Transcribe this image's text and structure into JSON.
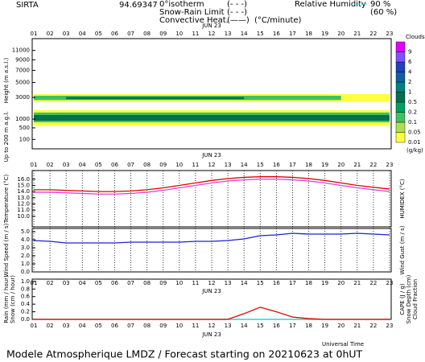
{
  "header": {
    "site": "SIRTA",
    "coords": "94.69347",
    "legend": [
      {
        "name": "0°isotherm",
        "symbol": "(- - -)",
        "color": "#e040e0"
      },
      {
        "name": "Snow-Rain Limit",
        "symbol": "(- - -)",
        "color": "#e040e0"
      },
      {
        "name": "Convective Heat.",
        "symbol": "(——)",
        "color": "#e00000",
        "unit": "(°C/minute)"
      }
    ],
    "rh": {
      "name": "Relative Humidity",
      "color": "#20d8e8",
      "high": "90 %",
      "low": "(60 %)"
    }
  },
  "footer": "Modele Atmospherique LMDZ / Forecast starting on 20210623 at 0hUT",
  "time_label": "Universal Time",
  "chart_data": [
    {
      "type": "contour",
      "date": "JUN 23",
      "y_label": "Height (m a.s.l.)",
      "y_sublabel": "Up to 200 m a.g.l.",
      "categories": [
        "01",
        "02",
        "03",
        "04",
        "05",
        "06",
        "07",
        "08",
        "09",
        "10",
        "11",
        "12",
        "13",
        "14",
        "15",
        "16",
        "17",
        "18",
        "19",
        "20",
        "21",
        "22",
        "23"
      ],
      "ylim": [
        0,
        13800
      ],
      "yscale": "sqrt",
      "yticks": [
        11000,
        9000,
        7000,
        5000,
        3000,
        1000,
        500,
        100
      ],
      "colorbar": {
        "title": "Clouds",
        "unit": "(g/kg)",
        "levels": [
          0.01,
          0.05,
          0.1,
          0.2,
          0.5,
          1,
          2,
          4,
          6,
          9
        ],
        "colors": [
          "#ffff40",
          "#b0e050",
          "#40c060",
          "#00a060",
          "#007050",
          "#008080",
          "#1060a0",
          "#2040c0",
          "#8050ff",
          "#e000ff"
        ]
      },
      "layers": [
        {
          "start": 1,
          "end": 23,
          "bottom": 2500,
          "top": 3400,
          "value": 0.01
        },
        {
          "start": 1,
          "end": 20,
          "bottom": 2700,
          "top": 3200,
          "value": 0.1
        },
        {
          "start": 3,
          "end": 14,
          "bottom": 2800,
          "top": 3050,
          "value": 0.5
        },
        {
          "start": 1,
          "end": 23,
          "bottom": 600,
          "top": 1700,
          "value": 0.01
        },
        {
          "start": 1,
          "end": 23,
          "bottom": 800,
          "top": 1500,
          "value": 0.1
        },
        {
          "start": 1,
          "end": 23,
          "bottom": 900,
          "top": 1300,
          "value": 0.5
        }
      ]
    },
    {
      "type": "line",
      "categories": [
        "01",
        "02",
        "03",
        "04",
        "05",
        "06",
        "07",
        "08",
        "09",
        "10",
        "11",
        "12",
        "13",
        "14",
        "15",
        "16",
        "17",
        "18",
        "19",
        "20",
        "21",
        "22",
        "23"
      ],
      "ylim": [
        8.3,
        17.4
      ],
      "yticks": [
        {
          "value": 16,
          "label": "16.0"
        },
        {
          "value": 15,
          "label": "15.0"
        },
        {
          "value": 14,
          "label": "14.0"
        },
        {
          "value": 13,
          "label": "13.0"
        },
        {
          "value": 12,
          "label": "12.0"
        },
        {
          "value": 11,
          "label": "11.0"
        },
        {
          "value": 10,
          "label": "10.0"
        }
      ],
      "grid": true,
      "series": [
        {
          "name": "Temperature (°C)",
          "color": "#e00000",
          "side": "left",
          "values": [
            14.3,
            14.3,
            14.2,
            14.1,
            14.0,
            14.0,
            14.1,
            14.3,
            14.6,
            15.0,
            15.4,
            15.8,
            16.1,
            16.3,
            16.4,
            16.4,
            16.3,
            16.1,
            15.8,
            15.4,
            15.0,
            14.7,
            14.4
          ]
        },
        {
          "name": "HUMIDEX (°C)",
          "color": "#e040e0",
          "side": "right",
          "values": [
            13.9,
            13.9,
            13.8,
            13.7,
            13.6,
            13.6,
            13.7,
            13.9,
            14.2,
            14.6,
            15.0,
            15.4,
            15.7,
            15.9,
            16.0,
            16.0,
            15.9,
            15.7,
            15.4,
            15.0,
            14.6,
            14.3,
            14.0
          ]
        }
      ],
      "labels": []
    },
    {
      "type": "line",
      "categories": [
        "01",
        "02",
        "03",
        "04",
        "05",
        "06",
        "07",
        "08",
        "09",
        "10",
        "11",
        "12",
        "13",
        "14",
        "15",
        "16",
        "17",
        "18",
        "19",
        "20",
        "21",
        "22",
        "23"
      ],
      "ylim": [
        0,
        5.4
      ],
      "yticks": [
        {
          "value": 5,
          "label": "5.0"
        },
        {
          "value": 4,
          "label": "4.0"
        },
        {
          "value": 3,
          "label": "3.0"
        },
        {
          "value": 2,
          "label": "2.0"
        },
        {
          "value": 1,
          "label": "1.0"
        },
        {
          "value": 0,
          "label": "0.0"
        }
      ],
      "grid": true,
      "series": [
        {
          "name": "Wind Speed (m / s)",
          "color": "#2020d0",
          "side": "left",
          "values": [
            3.9,
            3.8,
            3.6,
            3.6,
            3.6,
            3.6,
            3.7,
            3.7,
            3.7,
            3.7,
            3.8,
            3.8,
            3.9,
            4.1,
            4.5,
            4.6,
            4.8,
            4.7,
            4.7,
            4.7,
            4.8,
            4.7,
            4.6
          ]
        }
      ],
      "labels": [
        {
          "text": "Wind Gust (m / s)",
          "color": "#e040e0",
          "side": "right"
        }
      ]
    },
    {
      "type": "line",
      "date": "JUN 23",
      "categories": [
        "01",
        "02",
        "03",
        "04",
        "05",
        "06",
        "07",
        "08",
        "09",
        "10",
        "11",
        "12",
        "13",
        "14",
        "15",
        "16",
        "17",
        "18",
        "19",
        "20",
        "21",
        "22",
        "23"
      ],
      "ylim": [
        0,
        1.06
      ],
      "yticks": [
        {
          "value": 1,
          "label": "1.0"
        },
        {
          "value": 0.8,
          "label": "0.8"
        },
        {
          "value": 0.6,
          "label": "0.6"
        },
        {
          "value": 0.4,
          "label": "0.4"
        },
        {
          "value": 0.2,
          "label": "0.2"
        },
        {
          "value": 0,
          "label": "0.0"
        }
      ],
      "grid": false,
      "series": [
        {
          "name": "Rain (mm / hour)",
          "color": "#20c020",
          "side": "left",
          "values": [
            0,
            0,
            0,
            0,
            0,
            0,
            0,
            0,
            0,
            0,
            0,
            0,
            0,
            0,
            0,
            0,
            0,
            0,
            0,
            0,
            0,
            0,
            0
          ]
        },
        {
          "name": "Snow (cm / hour)",
          "color": "#20d8e8",
          "side": "left",
          "values": [
            0,
            0,
            0,
            0,
            0,
            0,
            0,
            0,
            0,
            0,
            0,
            0,
            0,
            0,
            0,
            0,
            0,
            0,
            0,
            0,
            0,
            0,
            0
          ]
        },
        {
          "name": "CAPE (J / g)",
          "color": "#e00000",
          "side": "right",
          "values": [
            0,
            0,
            0,
            0,
            0,
            0,
            0,
            0,
            0,
            0,
            0,
            0,
            0,
            0.15,
            0.32,
            0.2,
            0.06,
            0.02,
            0,
            0,
            0,
            0,
            0
          ]
        }
      ],
      "labels": [
        {
          "text": "Snow Depth (cm)",
          "color": "#2020d0",
          "side": "right"
        },
        {
          "text": "Cloud Fraction",
          "color": "#2020d0",
          "side": "right"
        }
      ]
    }
  ]
}
